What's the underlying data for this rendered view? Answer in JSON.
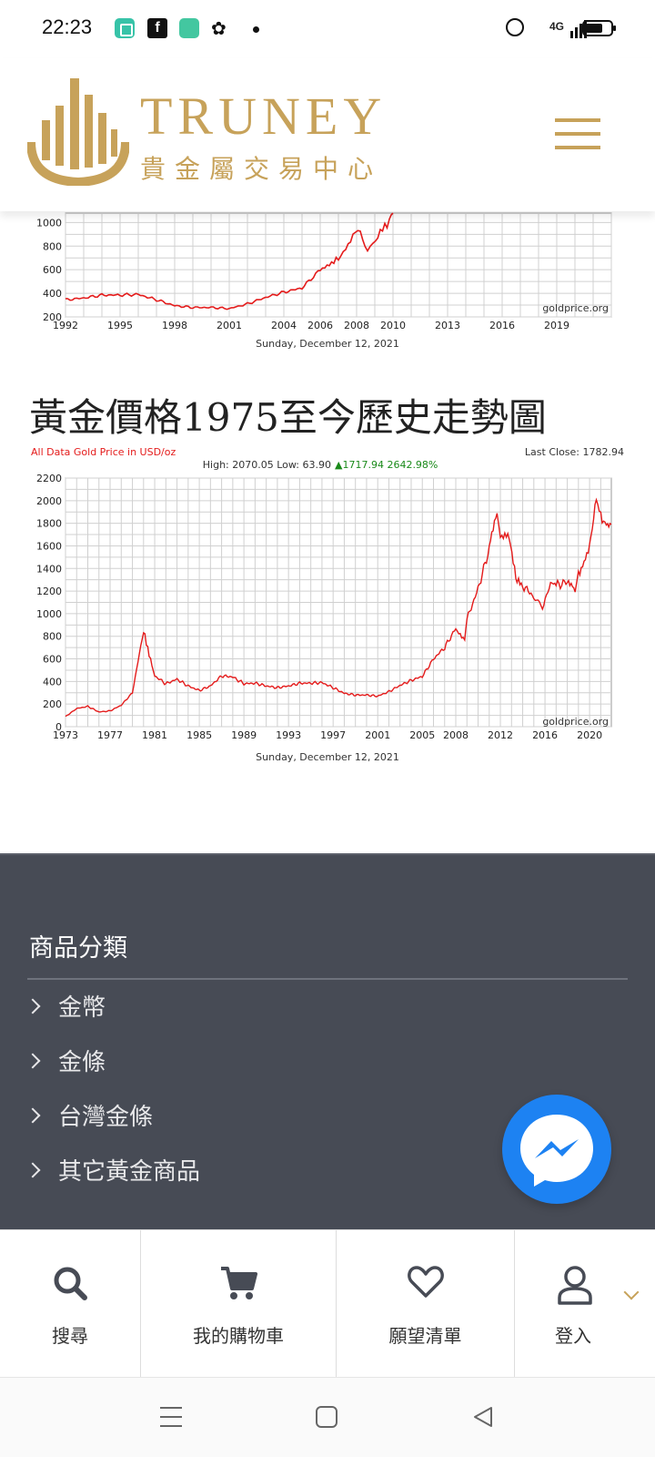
{
  "status_bar": {
    "time": "22:23",
    "network": "4G"
  },
  "header": {
    "brand": "TRUNEY",
    "brand_sub": "貴金屬交易中心",
    "accent_color": "#c7a25a"
  },
  "top_chart": {
    "footer_date": "Sunday, December 12, 2021",
    "watermark": "goldprice.org"
  },
  "section": {
    "title": "黃金價格1975至今歷史走勢圖"
  },
  "main_chart": {
    "title": "All Data Gold Price in USD/oz",
    "stats": "High: 2070.05 Low: 63.90",
    "change": "▲1717.94 2642.98%",
    "last_close": "Last Close: 1782.94",
    "footer_date": "Sunday, December 12, 2021",
    "watermark": "goldprice.org"
  },
  "chart_data": [
    {
      "type": "line",
      "title": "",
      "xlabel": "",
      "ylabel": "",
      "x_ticks": [
        "1992",
        "1995",
        "1998",
        "2001",
        "2004",
        "2006",
        "2008",
        "2010",
        "2013",
        "2016",
        "2019"
      ],
      "y_ticks": [
        200,
        400,
        600,
        800,
        1000
      ],
      "xlim": [
        1992,
        2022
      ],
      "ylim": [
        200,
        1080
      ],
      "grid": true,
      "color": "#e41b1b",
      "x": [
        1992,
        1993,
        1994,
        1995,
        1996,
        1997,
        1998,
        1999,
        2000,
        2001,
        2002,
        2003,
        2004,
        2005,
        2006,
        2006.5,
        2007,
        2007.8,
        2008.2,
        2008.6,
        2008.9,
        2009.3,
        2009.8,
        2010.0
      ],
      "values": [
        345,
        360,
        385,
        385,
        390,
        345,
        295,
        280,
        280,
        270,
        310,
        365,
        410,
        445,
        600,
        640,
        700,
        880,
        950,
        760,
        830,
        930,
        1000,
        1080
      ]
    },
    {
      "type": "line",
      "title": "All Data Gold Price in USD/oz",
      "xlabel": "",
      "ylabel": "",
      "x_ticks": [
        "1973",
        "1977",
        "1981",
        "1985",
        "1989",
        "1993",
        "1997",
        "2001",
        "2005",
        "2008",
        "2012",
        "2016",
        "2020"
      ],
      "y_ticks": [
        0,
        200,
        400,
        600,
        800,
        1000,
        1200,
        1400,
        1600,
        1800,
        2000,
        2200
      ],
      "xlim": [
        1973,
        2021.95
      ],
      "ylim": [
        0,
        2200
      ],
      "grid": true,
      "color": "#e41b1b",
      "x": [
        1973,
        1974,
        1975,
        1976,
        1977,
        1978,
        1979,
        1980.0,
        1980.5,
        1981,
        1982,
        1983,
        1984,
        1985,
        1986,
        1987,
        1988,
        1989,
        1990,
        1991,
        1992,
        1993,
        1994,
        1995,
        1996,
        1997,
        1998,
        1999,
        2000,
        2001,
        2002,
        2003,
        2004,
        2005,
        2006,
        2007,
        2008,
        2008.8,
        2009,
        2010,
        2011,
        2011.7,
        2012,
        2012.8,
        2013.5,
        2014,
        2015,
        2015.9,
        2016.5,
        2017,
        2018,
        2018.7,
        2019,
        2019.5,
        2020,
        2020.6,
        2021,
        2021.5,
        2021.95
      ],
      "values": [
        90,
        160,
        180,
        130,
        140,
        190,
        300,
        850,
        640,
        450,
        380,
        420,
        360,
        320,
        360,
        450,
        440,
        380,
        385,
        360,
        345,
        360,
        385,
        385,
        390,
        345,
        295,
        280,
        280,
        270,
        310,
        365,
        410,
        445,
        600,
        700,
        870,
        760,
        950,
        1220,
        1570,
        1880,
        1650,
        1700,
        1300,
        1250,
        1150,
        1060,
        1280,
        1250,
        1280,
        1200,
        1340,
        1450,
        1600,
        2060,
        1850,
        1780,
        1790
      ]
    }
  ],
  "footer": {
    "heading": "商品分類",
    "categories": [
      "金幣",
      "金條",
      "台灣金條",
      "其它黃金商品"
    ]
  },
  "bottom_tabs": [
    {
      "label": "搜尋",
      "icon": "search-icon"
    },
    {
      "label": "我的購物車",
      "icon": "cart-icon"
    },
    {
      "label": "願望清單",
      "icon": "heart-icon"
    },
    {
      "label": "登入",
      "icon": "user-icon"
    }
  ]
}
